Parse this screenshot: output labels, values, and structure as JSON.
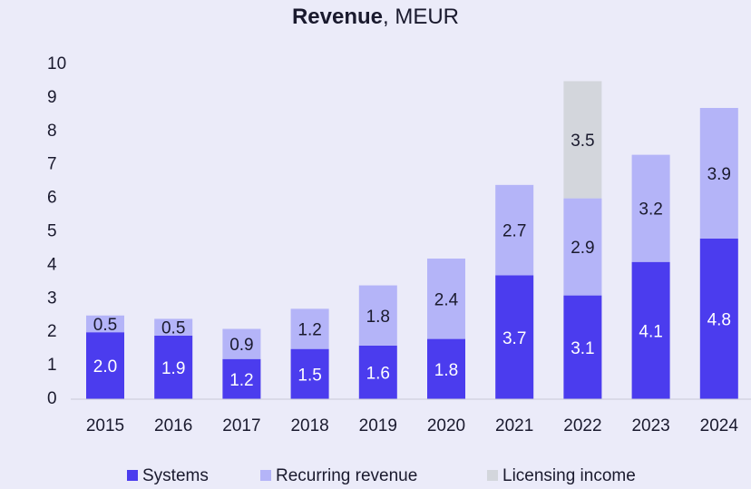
{
  "chart_data": {
    "type": "stacked_bar",
    "title": "Revenue",
    "title_suffix": ", MEUR",
    "categories": [
      "2015",
      "2016",
      "2017",
      "2018",
      "2019",
      "2020",
      "2021",
      "2022",
      "2023",
      "2024"
    ],
    "series": [
      {
        "name": "Systems",
        "color": "#4b3cee",
        "label_color": "#ffffff",
        "values": [
          2.0,
          1.9,
          1.2,
          1.5,
          1.6,
          1.8,
          3.7,
          3.1,
          4.1,
          4.8
        ],
        "value_labels": [
          "2.0",
          "1.9",
          "1.2",
          "1.5",
          "1.6",
          "1.8",
          "3.7",
          "3.1",
          "4.1",
          "4.8"
        ]
      },
      {
        "name": "Recurring revenue",
        "color": "#b4b4f8",
        "label_color": "#1a1a2e",
        "values": [
          0.5,
          0.5,
          0.9,
          1.2,
          1.8,
          2.4,
          2.7,
          2.9,
          3.2,
          3.9
        ],
        "value_labels": [
          "0.5",
          "0.5",
          "0.9",
          "1.2",
          "1.8",
          "2.4",
          "2.7",
          "2.9",
          "3.2",
          "3.9"
        ]
      },
      {
        "name": "Licensing income",
        "color": "#d3d6dc",
        "label_color": "#1a1a2e",
        "values": [
          null,
          null,
          null,
          null,
          null,
          null,
          null,
          3.5,
          null,
          null
        ],
        "value_labels": [
          null,
          null,
          null,
          null,
          null,
          null,
          null,
          "3.5",
          null,
          null
        ]
      }
    ],
    "ylim": [
      0,
      10
    ],
    "yticks": [
      0,
      1,
      2,
      3,
      4,
      5,
      6,
      7,
      8,
      9,
      10
    ],
    "grid": false,
    "legend": "bottom"
  }
}
